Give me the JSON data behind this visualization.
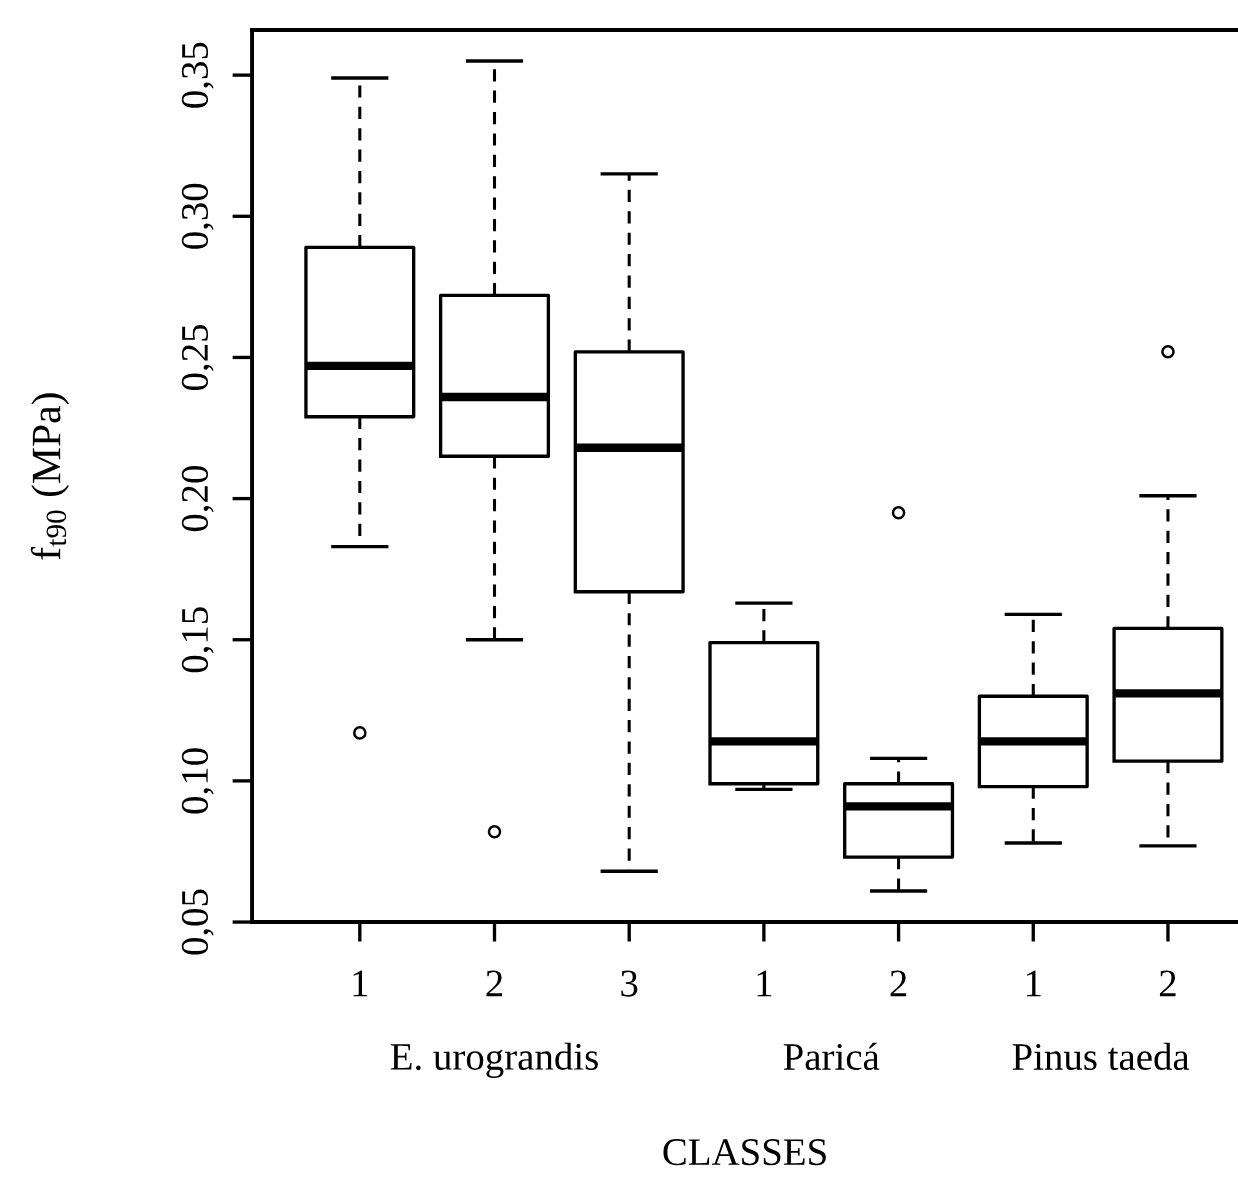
{
  "chart_data": {
    "type": "box",
    "xlabel": "CLASSES",
    "ylabel": "f$_{t90}$ (MPa)",
    "categories": [
      "1",
      "2",
      "3",
      "1",
      "2",
      "1",
      "2"
    ],
    "boxes": [
      {
        "low": 0.183,
        "q1": 0.229,
        "median": 0.247,
        "q3": 0.289,
        "high": 0.349,
        "outliers": [
          0.117
        ]
      },
      {
        "low": 0.15,
        "q1": 0.215,
        "median": 0.236,
        "q3": 0.272,
        "high": 0.355,
        "outliers": [
          0.082
        ]
      },
      {
        "low": 0.068,
        "q1": 0.167,
        "median": 0.218,
        "q3": 0.252,
        "high": 0.315
      },
      {
        "low": 0.097,
        "q1": 0.099,
        "median": 0.114,
        "q3": 0.149,
        "high": 0.163
      },
      {
        "low": 0.061,
        "q1": 0.073,
        "median": 0.091,
        "q3": 0.099,
        "high": 0.108,
        "outliers": [
          0.195
        ]
      },
      {
        "low": 0.078,
        "q1": 0.098,
        "median": 0.114,
        "q3": 0.13,
        "high": 0.159
      },
      {
        "low": 0.077,
        "q1": 0.107,
        "median": 0.131,
        "q3": 0.154,
        "high": 0.201,
        "outliers": [
          0.252
        ]
      }
    ],
    "annotations": [
      "E. urograndis",
      "Paricá",
      "Pinus taeda"
    ],
    "ylim": [
      0.05,
      0.366
    ],
    "yticks": [
      {
        "value": 0.05,
        "label": "0,05"
      },
      {
        "value": 0.1,
        "label": "0,10"
      },
      {
        "value": 0.15,
        "label": "0,15"
      },
      {
        "value": 0.2,
        "label": "0,20"
      },
      {
        "value": 0.25,
        "label": "0,25"
      },
      {
        "value": 0.3,
        "label": "0,30"
      },
      {
        "value": 0.35,
        "label": "0,35"
      }
    ]
  }
}
